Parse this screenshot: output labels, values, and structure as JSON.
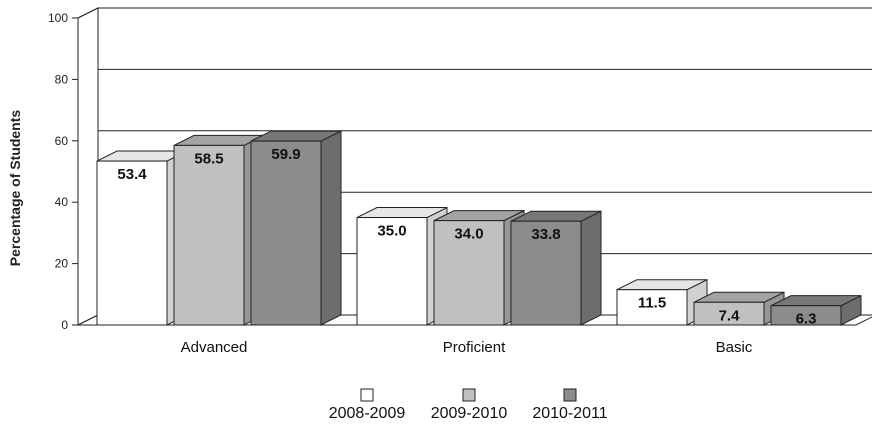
{
  "chart_data": {
    "type": "bar",
    "title": "",
    "xlabel": "",
    "ylabel": "Percentage of Students",
    "ylim": [
      0,
      100
    ],
    "yticks": [
      0,
      20,
      40,
      60,
      80,
      100
    ],
    "grid": true,
    "legend_position": "bottom-center",
    "categories": [
      "Advanced",
      "Proficient",
      "Basic"
    ],
    "series": [
      {
        "name": "2008-2009",
        "values": [
          53.4,
          35.0,
          11.5
        ],
        "color": "#ffffff"
      },
      {
        "name": "2009-2010",
        "values": [
          58.5,
          34.0,
          7.4
        ],
        "color": "#c0c0c0"
      },
      {
        "name": "2010-2011",
        "values": [
          59.9,
          33.8,
          6.3
        ],
        "color": "#8c8c8c"
      }
    ],
    "data_labels": [
      [
        "53.4",
        "35.0",
        "11.5"
      ],
      [
        "58.5",
        "34.0",
        "7.4"
      ],
      [
        "59.9",
        "33.8",
        "6.3"
      ]
    ]
  }
}
